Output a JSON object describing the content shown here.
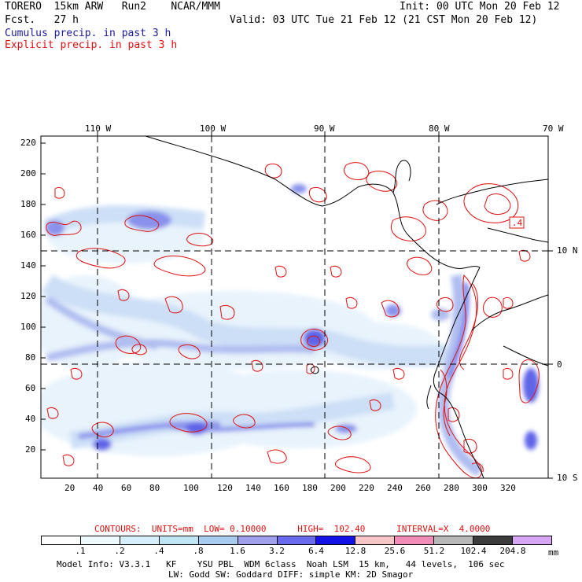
{
  "header": {
    "model": "TORERO  15km ARW   Run2    NCAR/MMM",
    "init": "Init: 00 UTC Mon 20 Feb 12",
    "fcst": "Fcst.   27 h",
    "valid": "Valid: 03 UTC Tue 21 Feb 12 (21 CST Mon 20 Feb 12)",
    "field1": "Cumulus precip. in past 3 h",
    "field2": "Explicit precip. in past 3 h"
  },
  "axes": {
    "top_lon": [
      "110 W",
      "100 W",
      "90 W",
      "80 W",
      "70 W"
    ],
    "right_lat": [
      "10 N",
      "0",
      "10 S"
    ],
    "left_y": [
      "220",
      "200",
      "180",
      "160",
      "140",
      "120",
      "100",
      "80",
      "60",
      "40",
      "20"
    ],
    "bottom_x": [
      "20",
      "40",
      "60",
      "80",
      "100",
      "120",
      "140",
      "160",
      "180",
      "200",
      "220",
      "240",
      "260",
      "280",
      "300",
      "320"
    ]
  },
  "map": {
    "label_box": ".4",
    "contour_color": "#e01010",
    "coast_color": "#000000",
    "shade_colors": [
      "#e6f2fc",
      "#c8dcf6",
      "#a7b6ef",
      "#7d86ea",
      "#4f55e6",
      "#1c1ce0"
    ]
  },
  "contour_info": "CONTOURS:  UNITS=mm  LOW= 0.10000      HIGH=  102.40      INTERVAL=X  4.0000",
  "colorbar": {
    "labels": [
      ".1",
      ".2",
      ".4",
      ".8",
      "1.6",
      "3.2",
      "6.4",
      "12.8",
      "25.6",
      "51.2",
      "102.4",
      "204.8"
    ],
    "unit": "mm",
    "colors": [
      "#ffffff",
      "#eef8ff",
      "#d6f0fb",
      "#bfe6f5",
      "#a8cbf0",
      "#a0a0ee",
      "#6a6aee",
      "#1212e6",
      "#f8c6c6",
      "#f28cb8",
      "#b8b8b8",
      "#3c3c3c",
      "#d6a6f4"
    ]
  },
  "footer": {
    "line1": "Model Info: V3.3.1   KF    YSU PBL  WDM 6class  Noah LSM  15 km,   44 levels,  106 sec",
    "line2": "LW: Godd SW: Goddard DIFF: simple KM: 2D Smagor"
  }
}
